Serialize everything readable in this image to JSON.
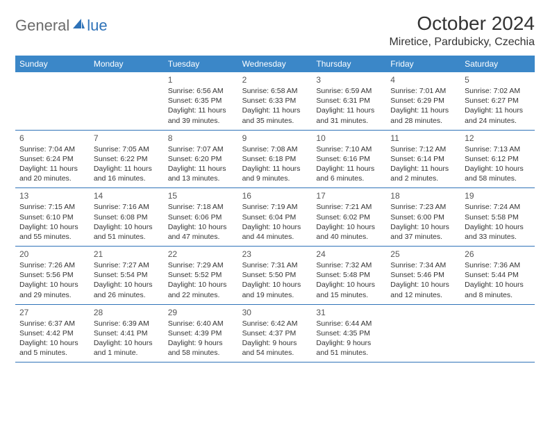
{
  "logo": {
    "text1": "General",
    "text2": "lue"
  },
  "title": "October 2024",
  "location": "Miretice, Pardubicky, Czechia",
  "colors": {
    "header_bg": "#3b87c8",
    "header_text": "#ffffff",
    "border": "#2e72b8",
    "logo_gray": "#6b6b6b",
    "logo_blue": "#2e72b8"
  },
  "dayNames": [
    "Sunday",
    "Monday",
    "Tuesday",
    "Wednesday",
    "Thursday",
    "Friday",
    "Saturday"
  ],
  "weeks": [
    [
      {
        "n": "",
        "sr": "",
        "ss": "",
        "dl1": "",
        "dl2": ""
      },
      {
        "n": "",
        "sr": "",
        "ss": "",
        "dl1": "",
        "dl2": ""
      },
      {
        "n": "1",
        "sr": "Sunrise: 6:56 AM",
        "ss": "Sunset: 6:35 PM",
        "dl1": "Daylight: 11 hours",
        "dl2": "and 39 minutes."
      },
      {
        "n": "2",
        "sr": "Sunrise: 6:58 AM",
        "ss": "Sunset: 6:33 PM",
        "dl1": "Daylight: 11 hours",
        "dl2": "and 35 minutes."
      },
      {
        "n": "3",
        "sr": "Sunrise: 6:59 AM",
        "ss": "Sunset: 6:31 PM",
        "dl1": "Daylight: 11 hours",
        "dl2": "and 31 minutes."
      },
      {
        "n": "4",
        "sr": "Sunrise: 7:01 AM",
        "ss": "Sunset: 6:29 PM",
        "dl1": "Daylight: 11 hours",
        "dl2": "and 28 minutes."
      },
      {
        "n": "5",
        "sr": "Sunrise: 7:02 AM",
        "ss": "Sunset: 6:27 PM",
        "dl1": "Daylight: 11 hours",
        "dl2": "and 24 minutes."
      }
    ],
    [
      {
        "n": "6",
        "sr": "Sunrise: 7:04 AM",
        "ss": "Sunset: 6:24 PM",
        "dl1": "Daylight: 11 hours",
        "dl2": "and 20 minutes."
      },
      {
        "n": "7",
        "sr": "Sunrise: 7:05 AM",
        "ss": "Sunset: 6:22 PM",
        "dl1": "Daylight: 11 hours",
        "dl2": "and 16 minutes."
      },
      {
        "n": "8",
        "sr": "Sunrise: 7:07 AM",
        "ss": "Sunset: 6:20 PM",
        "dl1": "Daylight: 11 hours",
        "dl2": "and 13 minutes."
      },
      {
        "n": "9",
        "sr": "Sunrise: 7:08 AM",
        "ss": "Sunset: 6:18 PM",
        "dl1": "Daylight: 11 hours",
        "dl2": "and 9 minutes."
      },
      {
        "n": "10",
        "sr": "Sunrise: 7:10 AM",
        "ss": "Sunset: 6:16 PM",
        "dl1": "Daylight: 11 hours",
        "dl2": "and 6 minutes."
      },
      {
        "n": "11",
        "sr": "Sunrise: 7:12 AM",
        "ss": "Sunset: 6:14 PM",
        "dl1": "Daylight: 11 hours",
        "dl2": "and 2 minutes."
      },
      {
        "n": "12",
        "sr": "Sunrise: 7:13 AM",
        "ss": "Sunset: 6:12 PM",
        "dl1": "Daylight: 10 hours",
        "dl2": "and 58 minutes."
      }
    ],
    [
      {
        "n": "13",
        "sr": "Sunrise: 7:15 AM",
        "ss": "Sunset: 6:10 PM",
        "dl1": "Daylight: 10 hours",
        "dl2": "and 55 minutes."
      },
      {
        "n": "14",
        "sr": "Sunrise: 7:16 AM",
        "ss": "Sunset: 6:08 PM",
        "dl1": "Daylight: 10 hours",
        "dl2": "and 51 minutes."
      },
      {
        "n": "15",
        "sr": "Sunrise: 7:18 AM",
        "ss": "Sunset: 6:06 PM",
        "dl1": "Daylight: 10 hours",
        "dl2": "and 47 minutes."
      },
      {
        "n": "16",
        "sr": "Sunrise: 7:19 AM",
        "ss": "Sunset: 6:04 PM",
        "dl1": "Daylight: 10 hours",
        "dl2": "and 44 minutes."
      },
      {
        "n": "17",
        "sr": "Sunrise: 7:21 AM",
        "ss": "Sunset: 6:02 PM",
        "dl1": "Daylight: 10 hours",
        "dl2": "and 40 minutes."
      },
      {
        "n": "18",
        "sr": "Sunrise: 7:23 AM",
        "ss": "Sunset: 6:00 PM",
        "dl1": "Daylight: 10 hours",
        "dl2": "and 37 minutes."
      },
      {
        "n": "19",
        "sr": "Sunrise: 7:24 AM",
        "ss": "Sunset: 5:58 PM",
        "dl1": "Daylight: 10 hours",
        "dl2": "and 33 minutes."
      }
    ],
    [
      {
        "n": "20",
        "sr": "Sunrise: 7:26 AM",
        "ss": "Sunset: 5:56 PM",
        "dl1": "Daylight: 10 hours",
        "dl2": "and 29 minutes."
      },
      {
        "n": "21",
        "sr": "Sunrise: 7:27 AM",
        "ss": "Sunset: 5:54 PM",
        "dl1": "Daylight: 10 hours",
        "dl2": "and 26 minutes."
      },
      {
        "n": "22",
        "sr": "Sunrise: 7:29 AM",
        "ss": "Sunset: 5:52 PM",
        "dl1": "Daylight: 10 hours",
        "dl2": "and 22 minutes."
      },
      {
        "n": "23",
        "sr": "Sunrise: 7:31 AM",
        "ss": "Sunset: 5:50 PM",
        "dl1": "Daylight: 10 hours",
        "dl2": "and 19 minutes."
      },
      {
        "n": "24",
        "sr": "Sunrise: 7:32 AM",
        "ss": "Sunset: 5:48 PM",
        "dl1": "Daylight: 10 hours",
        "dl2": "and 15 minutes."
      },
      {
        "n": "25",
        "sr": "Sunrise: 7:34 AM",
        "ss": "Sunset: 5:46 PM",
        "dl1": "Daylight: 10 hours",
        "dl2": "and 12 minutes."
      },
      {
        "n": "26",
        "sr": "Sunrise: 7:36 AM",
        "ss": "Sunset: 5:44 PM",
        "dl1": "Daylight: 10 hours",
        "dl2": "and 8 minutes."
      }
    ],
    [
      {
        "n": "27",
        "sr": "Sunrise: 6:37 AM",
        "ss": "Sunset: 4:42 PM",
        "dl1": "Daylight: 10 hours",
        "dl2": "and 5 minutes."
      },
      {
        "n": "28",
        "sr": "Sunrise: 6:39 AM",
        "ss": "Sunset: 4:41 PM",
        "dl1": "Daylight: 10 hours",
        "dl2": "and 1 minute."
      },
      {
        "n": "29",
        "sr": "Sunrise: 6:40 AM",
        "ss": "Sunset: 4:39 PM",
        "dl1": "Daylight: 9 hours",
        "dl2": "and 58 minutes."
      },
      {
        "n": "30",
        "sr": "Sunrise: 6:42 AM",
        "ss": "Sunset: 4:37 PM",
        "dl1": "Daylight: 9 hours",
        "dl2": "and 54 minutes."
      },
      {
        "n": "31",
        "sr": "Sunrise: 6:44 AM",
        "ss": "Sunset: 4:35 PM",
        "dl1": "Daylight: 9 hours",
        "dl2": "and 51 minutes."
      },
      {
        "n": "",
        "sr": "",
        "ss": "",
        "dl1": "",
        "dl2": ""
      },
      {
        "n": "",
        "sr": "",
        "ss": "",
        "dl1": "",
        "dl2": ""
      }
    ]
  ]
}
